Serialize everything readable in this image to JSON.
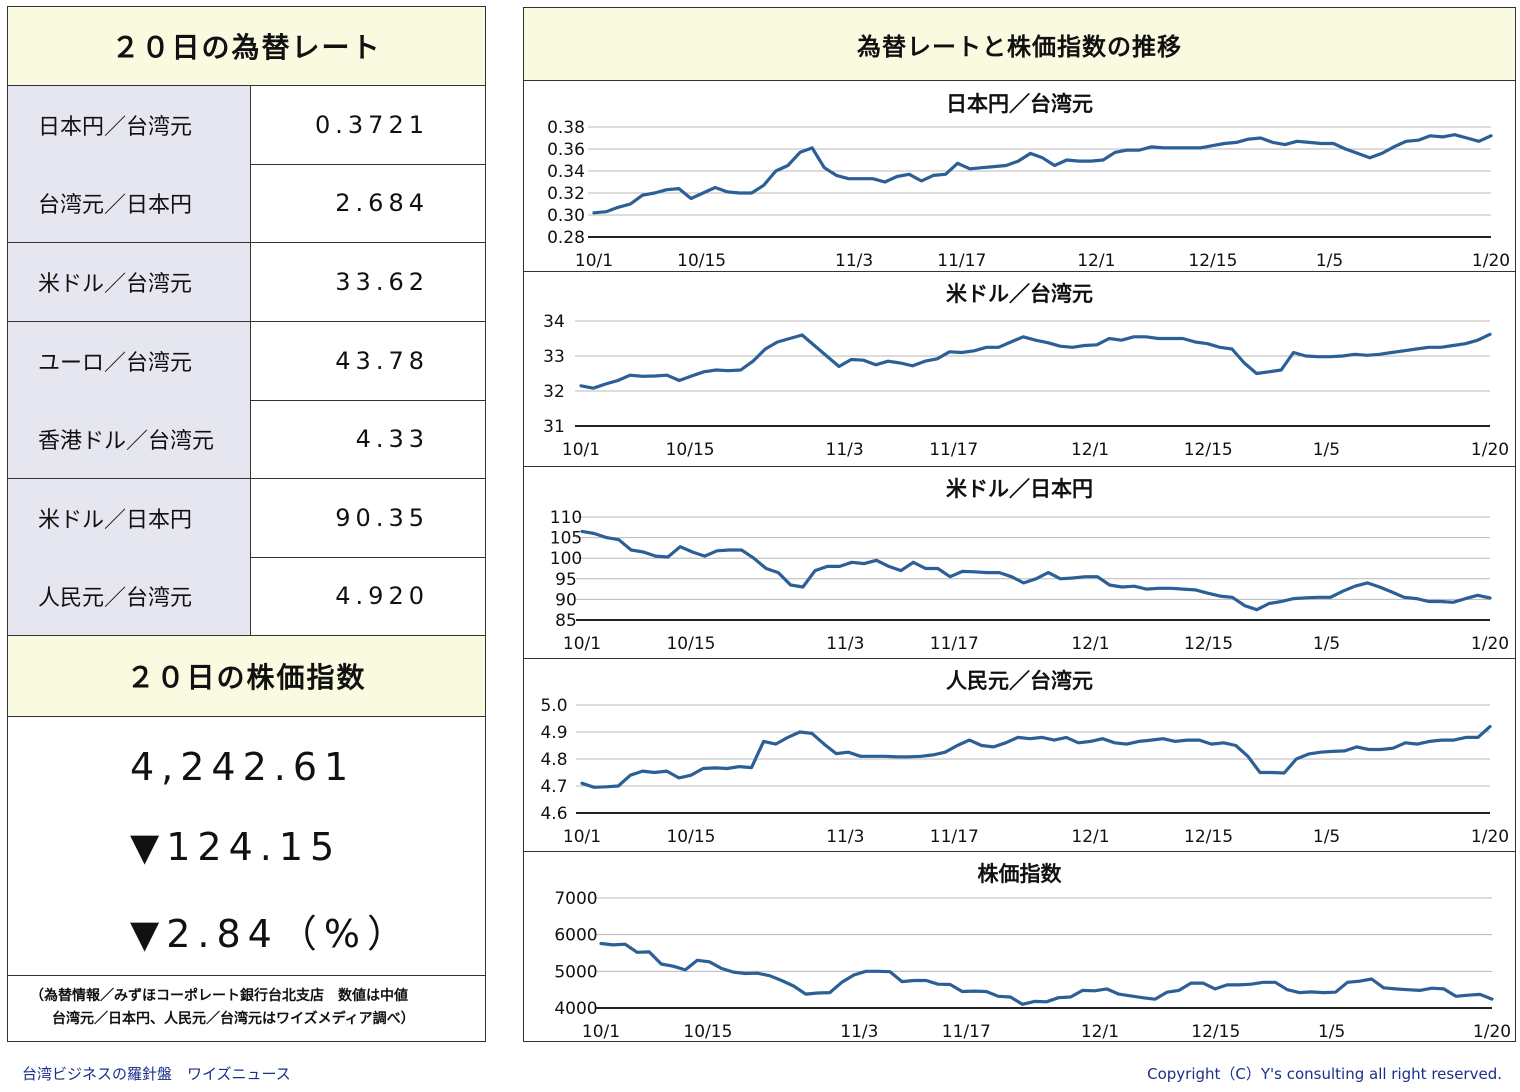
{
  "left": {
    "rates_title": "２０日の為替レート",
    "rates": [
      {
        "label": "日本円／台湾元",
        "value": "0.3721"
      },
      {
        "label": "台湾元／日本円",
        "value": "2.684"
      },
      {
        "label": "米ドル／台湾元",
        "value": "33.62"
      },
      {
        "label": "ユーロ／台湾元",
        "value": "43.78"
      },
      {
        "label": "香港ドル／台湾元",
        "value": "4.33"
      },
      {
        "label": "米ドル／日本円",
        "value": "90.35"
      },
      {
        "label": "人民元／台湾元",
        "value": "4.920"
      }
    ],
    "stock_title": "２０日の株価指数",
    "stock_value": "4,242.61",
    "stock_change": "▼124.15",
    "stock_pct": "▼2.84（%）",
    "note_line1": "（為替情報／みずほコーポレート銀行台北支店　数値は中値",
    "note_line2": "台湾元／日本円、人民元／台湾元はワイズメディア調べ）"
  },
  "right": {
    "title": "為替レートと株価指数の推移"
  },
  "footer": {
    "left": "台湾ビジネスの羅針盤　ワイズニュース",
    "right": "Copyright（C）Y's consulting all right reserved."
  },
  "colors": {
    "line": "#2b5f95",
    "header_bg": "#fafae0",
    "label_bg": "#e6e6f0",
    "footer_text": "#1a2f8a"
  },
  "chart_data": [
    {
      "type": "line",
      "title": "日本円／台湾元",
      "x_ticks": [
        "10/1",
        "10/15",
        "11/3",
        "11/17",
        "12/1",
        "12/15",
        "1/5",
        "1/20"
      ],
      "y_ticks": [
        "0.28",
        "0.30",
        "0.32",
        "0.34",
        "0.36",
        "0.38"
      ],
      "ylim": [
        0.28,
        0.38
      ],
      "series": [
        {
          "values": [
            0.302,
            0.303,
            0.307,
            0.31,
            0.318,
            0.32,
            0.323,
            0.324,
            0.315,
            0.32,
            0.325,
            0.321,
            0.32,
            0.32,
            0.327,
            0.34,
            0.345,
            0.357,
            0.361,
            0.343,
            0.336,
            0.333,
            0.333,
            0.333,
            0.33,
            0.335,
            0.337,
            0.331,
            0.336,
            0.337,
            0.347,
            0.342,
            0.343,
            0.344,
            0.345,
            0.349,
            0.356,
            0.352,
            0.345,
            0.35,
            0.349,
            0.349,
            0.35,
            0.357,
            0.359,
            0.359,
            0.362,
            0.361,
            0.361,
            0.361,
            0.361,
            0.363,
            0.365,
            0.366,
            0.369,
            0.37,
            0.366,
            0.364,
            0.367,
            0.366,
            0.365,
            0.365,
            0.36,
            0.356,
            0.352,
            0.356,
            0.362,
            0.367,
            0.368,
            0.372,
            0.371,
            0.373,
            0.37,
            0.367,
            0.372
          ]
        }
      ]
    },
    {
      "type": "line",
      "title": "米ドル／台湾元",
      "x_ticks": [
        "10/1",
        "10/15",
        "11/3",
        "11/17",
        "12/1",
        "12/15",
        "1/5",
        "1/20"
      ],
      "y_ticks": [
        "31",
        "32",
        "33",
        "34"
      ],
      "ylim": [
        31,
        34
      ],
      "series": [
        {
          "values": [
            32.15,
            32.08,
            32.2,
            32.3,
            32.45,
            32.42,
            32.43,
            32.45,
            32.3,
            32.43,
            32.55,
            32.6,
            32.58,
            32.6,
            32.85,
            33.2,
            33.4,
            33.5,
            33.6,
            33.3,
            33.0,
            32.7,
            32.9,
            32.88,
            32.75,
            32.85,
            32.8,
            32.72,
            32.85,
            32.92,
            33.12,
            33.1,
            33.15,
            33.25,
            33.25,
            33.4,
            33.55,
            33.45,
            33.38,
            33.28,
            33.25,
            33.3,
            33.32,
            33.5,
            33.45,
            33.55,
            33.55,
            33.5,
            33.5,
            33.5,
            33.4,
            33.35,
            33.25,
            33.2,
            32.8,
            32.5,
            32.55,
            32.6,
            33.1,
            33.0,
            32.98,
            32.98,
            33.0,
            33.05,
            33.02,
            33.05,
            33.1,
            33.15,
            33.2,
            33.25,
            33.25,
            33.3,
            33.35,
            33.45,
            33.62
          ]
        }
      ]
    },
    {
      "type": "line",
      "title": "米ドル／日本円",
      "x_ticks": [
        "10/1",
        "10/15",
        "11/3",
        "11/17",
        "12/1",
        "12/15",
        "1/5",
        "1/20"
      ],
      "y_ticks": [
        "85",
        "90",
        "95",
        "100",
        "105",
        "110"
      ],
      "ylim": [
        85,
        110
      ],
      "series": [
        {
          "values": [
            106.5,
            106,
            105,
            104.5,
            102,
            101.5,
            100.5,
            100.3,
            102.8,
            101.5,
            100.5,
            101.8,
            102,
            102,
            100,
            97.5,
            96.5,
            93.5,
            93,
            97,
            98,
            98,
            99,
            98.7,
            99.5,
            98,
            97,
            99,
            97.5,
            97.5,
            95.5,
            96.8,
            96.7,
            96.5,
            96.5,
            95.5,
            94,
            95,
            96.5,
            95,
            95.2,
            95.5,
            95.5,
            93.5,
            93,
            93.2,
            92.5,
            92.7,
            92.7,
            92.5,
            92.3,
            91.5,
            90.8,
            90.5,
            88.5,
            87.5,
            89,
            89.5,
            90.2,
            90.4,
            90.5,
            90.5,
            92,
            93.2,
            94,
            93,
            91.8,
            90.5,
            90.2,
            89.5,
            89.5,
            89.3,
            90.2,
            91,
            90.35
          ]
        }
      ]
    },
    {
      "type": "line",
      "title": "人民元／台湾元",
      "x_ticks": [
        "10/1",
        "10/15",
        "11/3",
        "11/17",
        "12/1",
        "12/15",
        "1/5",
        "1/20"
      ],
      "y_ticks": [
        "4.6",
        "4.7",
        "4.8",
        "4.9",
        "5.0"
      ],
      "ylim": [
        4.6,
        5.0
      ],
      "series": [
        {
          "values": [
            4.71,
            4.695,
            4.697,
            4.7,
            4.74,
            4.755,
            4.75,
            4.755,
            4.73,
            4.74,
            4.765,
            4.767,
            4.765,
            4.772,
            4.768,
            4.865,
            4.855,
            4.88,
            4.9,
            4.895,
            4.855,
            4.82,
            4.825,
            4.81,
            4.81,
            4.81,
            4.808,
            4.808,
            4.81,
            4.815,
            4.825,
            4.85,
            4.87,
            4.85,
            4.845,
            4.86,
            4.88,
            4.875,
            4.88,
            4.87,
            4.88,
            4.86,
            4.865,
            4.875,
            4.86,
            4.855,
            4.865,
            4.87,
            4.875,
            4.865,
            4.87,
            4.87,
            4.855,
            4.86,
            4.85,
            4.81,
            4.75,
            4.75,
            4.748,
            4.8,
            4.818,
            4.825,
            4.828,
            4.83,
            4.845,
            4.835,
            4.835,
            4.84,
            4.86,
            4.855,
            4.865,
            4.87,
            4.87,
            4.88,
            4.88,
            4.92
          ]
        }
      ]
    },
    {
      "type": "line",
      "title": "株価指数",
      "x_ticks": [
        "10/1",
        "10/15",
        "11/3",
        "11/17",
        "12/1",
        "12/15",
        "1/5",
        "1/20"
      ],
      "y_ticks": [
        "4000",
        "5000",
        "6000",
        "7000"
      ],
      "ylim": [
        4000,
        7000
      ],
      "series": [
        {
          "values": [
            5760,
            5720,
            5740,
            5520,
            5530,
            5200,
            5140,
            5040,
            5300,
            5260,
            5080,
            4980,
            4940,
            4950,
            4880,
            4750,
            4600,
            4380,
            4410,
            4420,
            4700,
            4900,
            5000,
            5000,
            4990,
            4720,
            4750,
            4750,
            4650,
            4640,
            4450,
            4460,
            4450,
            4320,
            4300,
            4100,
            4180,
            4170,
            4280,
            4300,
            4480,
            4470,
            4520,
            4380,
            4330,
            4280,
            4240,
            4430,
            4480,
            4680,
            4680,
            4520,
            4630,
            4630,
            4650,
            4700,
            4700,
            4500,
            4420,
            4440,
            4420,
            4430,
            4700,
            4730,
            4790,
            4550,
            4520,
            4500,
            4480,
            4540,
            4520,
            4320,
            4350,
            4370,
            4242.61
          ]
        }
      ]
    }
  ]
}
